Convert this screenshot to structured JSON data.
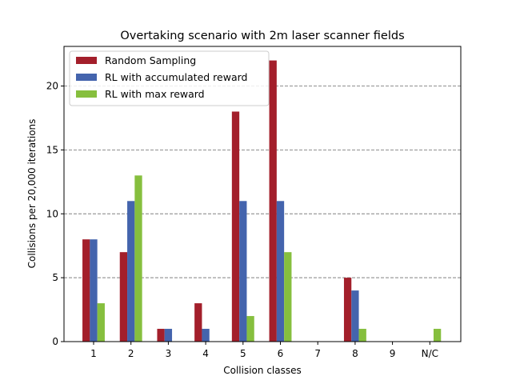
{
  "chart_data": {
    "type": "bar",
    "title": "Overtaking scenario with 2m laser scanner fields",
    "xlabel": "Collision classes",
    "ylabel": "Collisions per 20,000 iterations",
    "categories": [
      "1",
      "2",
      "3",
      "4",
      "5",
      "6",
      "7",
      "8",
      "9",
      "N/C"
    ],
    "ylim": [
      0,
      23.1
    ],
    "yticks": [
      0,
      5,
      10,
      15,
      20
    ],
    "grid": "y-dashed",
    "legend_position": "top-left",
    "series": [
      {
        "name": "Random Sampling",
        "color": "#a31f2b",
        "values": [
          8,
          7,
          1,
          3,
          18,
          22,
          0,
          5,
          0,
          0
        ]
      },
      {
        "name": "RL with accumulated reward",
        "color": "#4464ad",
        "values": [
          8,
          11,
          1,
          1,
          11,
          11,
          0,
          4,
          0,
          0
        ]
      },
      {
        "name": "RL with max reward",
        "color": "#86bf3e",
        "values": [
          3,
          13,
          0,
          0,
          2,
          7,
          0,
          1,
          0,
          1
        ]
      }
    ]
  }
}
